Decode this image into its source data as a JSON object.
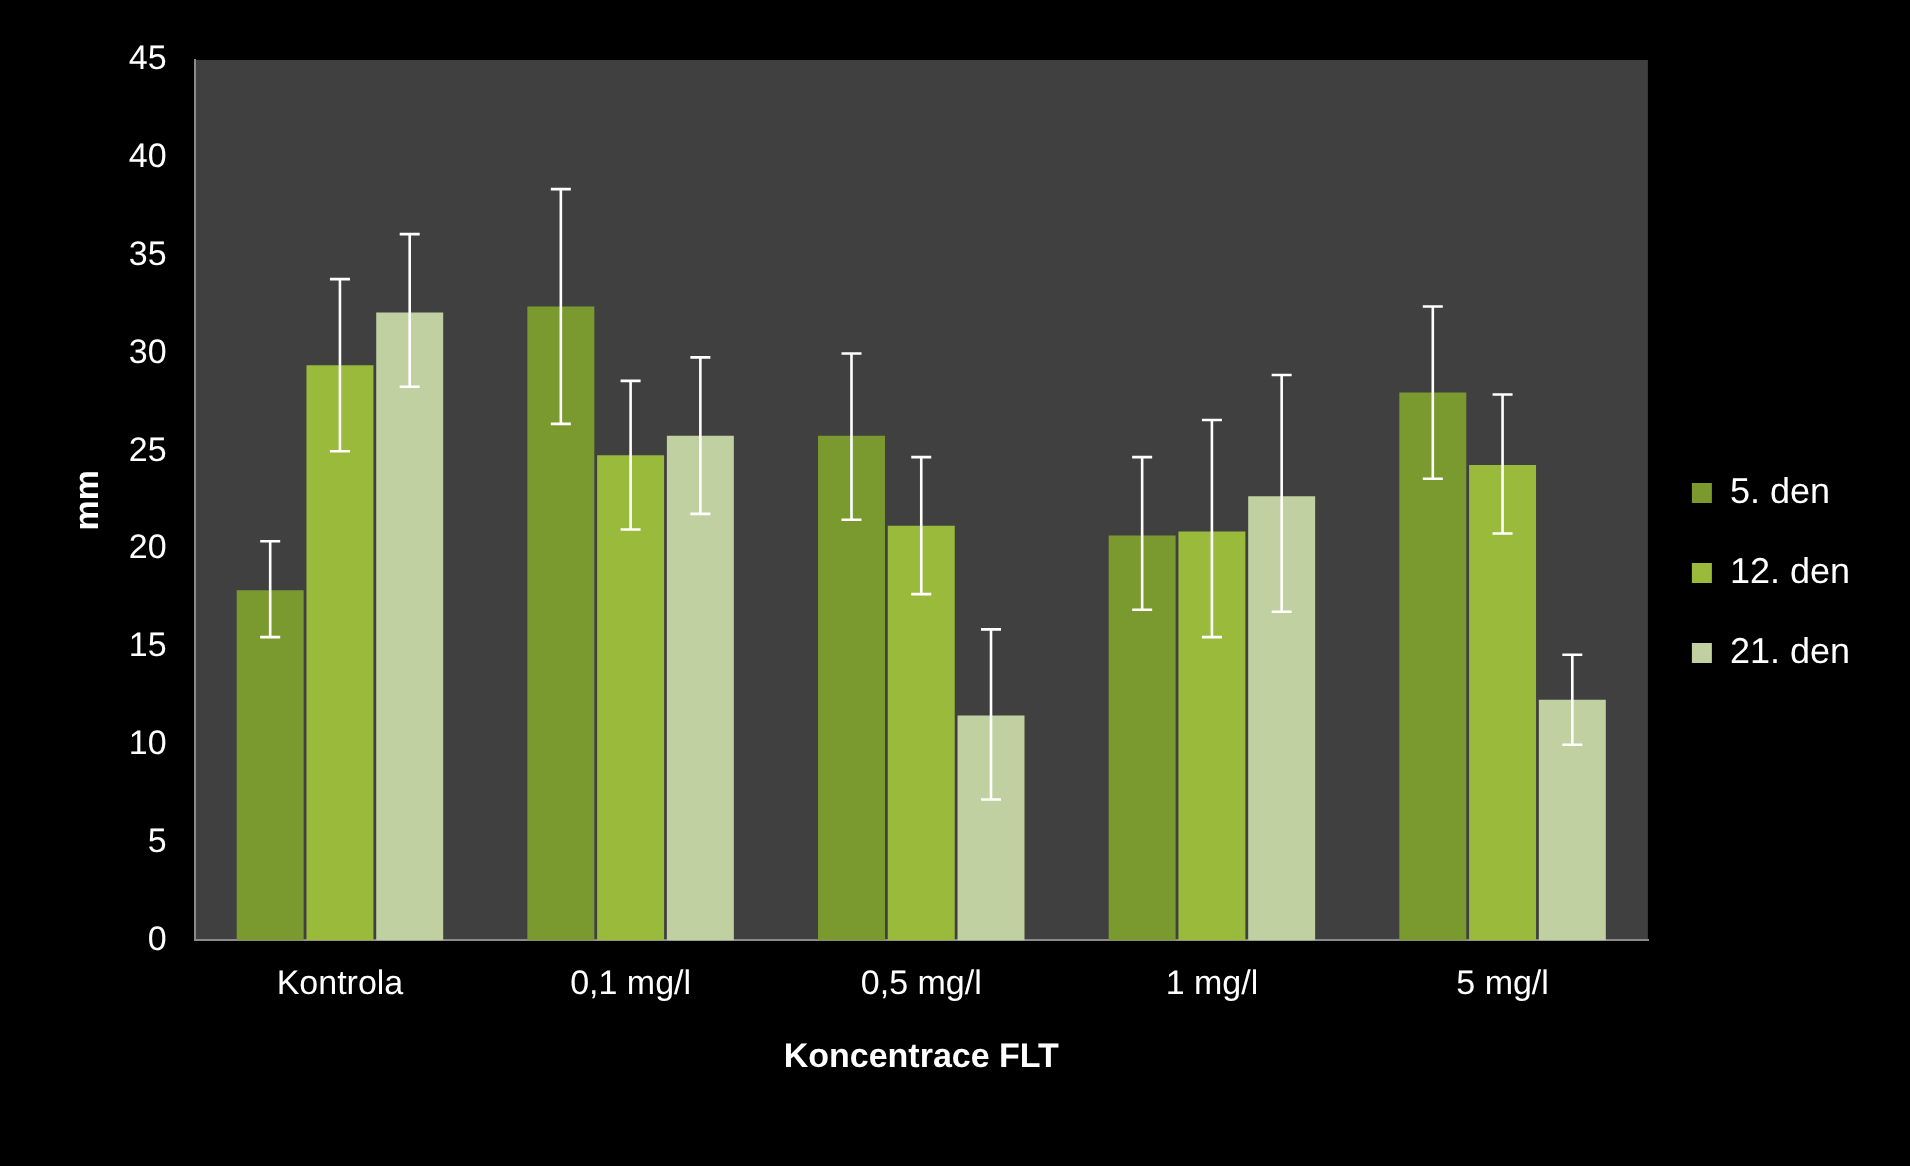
{
  "chart_data": {
    "type": "bar",
    "xlabel": "Koncentrace FLT",
    "ylabel": "mm",
    "categories": [
      "Kontrola",
      "0,1 mg/l",
      "0,5 mg/l",
      "1 mg/l",
      "5 mg/l"
    ],
    "series": [
      {
        "name": "5. den",
        "color": "#7a9a30",
        "values": [
          17.9,
          32.4,
          25.8,
          20.7,
          28.0
        ],
        "errors": [
          [
            15.5,
            20.4
          ],
          [
            26.4,
            38.4
          ],
          [
            21.5,
            30.0
          ],
          [
            16.9,
            24.7
          ],
          [
            23.6,
            32.4
          ]
        ]
      },
      {
        "name": "12. den",
        "color": "#9aba3c",
        "values": [
          29.4,
          24.8,
          21.2,
          20.9,
          24.3
        ],
        "errors": [
          [
            25.0,
            33.8
          ],
          [
            21.0,
            28.6
          ],
          [
            17.7,
            24.7
          ],
          [
            15.5,
            26.6
          ],
          [
            20.8,
            27.9
          ]
        ]
      },
      {
        "name": "21. den",
        "color": "#c0d0a0",
        "values": [
          32.1,
          25.8,
          11.5,
          22.7,
          12.3
        ],
        "errors": [
          [
            28.3,
            36.1
          ],
          [
            21.8,
            29.8
          ],
          [
            7.2,
            15.9
          ],
          [
            16.8,
            28.9
          ],
          [
            10.0,
            14.6
          ]
        ]
      }
    ],
    "ylim": [
      0,
      45
    ],
    "yticks": [
      0,
      5,
      10,
      15,
      20,
      25,
      30,
      35,
      40,
      45
    ],
    "grid": false,
    "legend": "right"
  }
}
